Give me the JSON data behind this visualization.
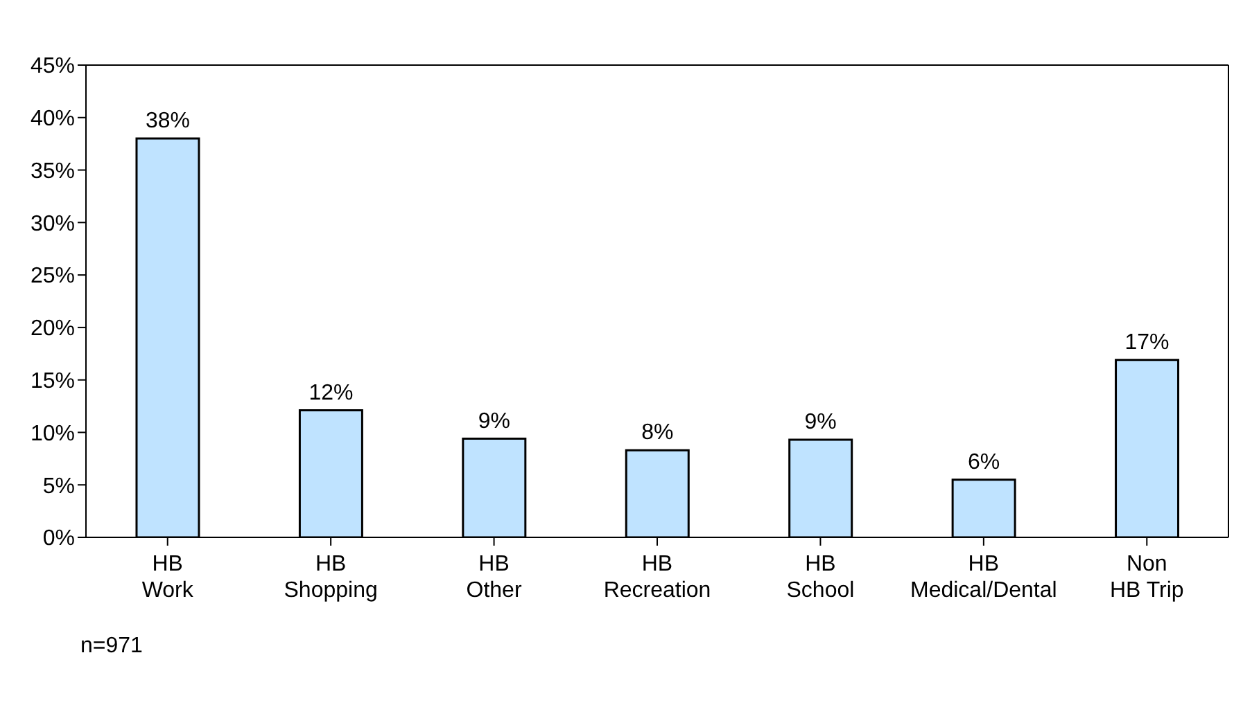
{
  "chart_data": {
    "type": "bar",
    "categories": [
      "HB Work",
      "HB Shopping",
      "HB Other",
      "HB Recreation",
      "HB School",
      "HB Medical/Dental",
      "Non HB Trip"
    ],
    "values": [
      38,
      12.1,
      9.4,
      8.3,
      9.3,
      5.5,
      16.9
    ],
    "value_labels": [
      "38%",
      "12%",
      "9%",
      "8%",
      "9%",
      "6%",
      "17%"
    ],
    "color": "#bfe3ff",
    "ylim": [
      0,
      45
    ],
    "yticks": [
      {
        "value": 0,
        "label": "0%"
      },
      {
        "value": 5,
        "label": "5%"
      },
      {
        "value": 10,
        "label": "10%"
      },
      {
        "value": 15,
        "label": "15%"
      },
      {
        "value": 20,
        "label": "20%"
      },
      {
        "value": 25,
        "label": "25%"
      },
      {
        "value": 30,
        "label": "30%"
      },
      {
        "value": 35,
        "label": "35%"
      },
      {
        "value": 40,
        "label": "40%"
      },
      {
        "value": 45,
        "label": "45%"
      }
    ],
    "grid": false,
    "annotations": [
      "n=971"
    ]
  }
}
